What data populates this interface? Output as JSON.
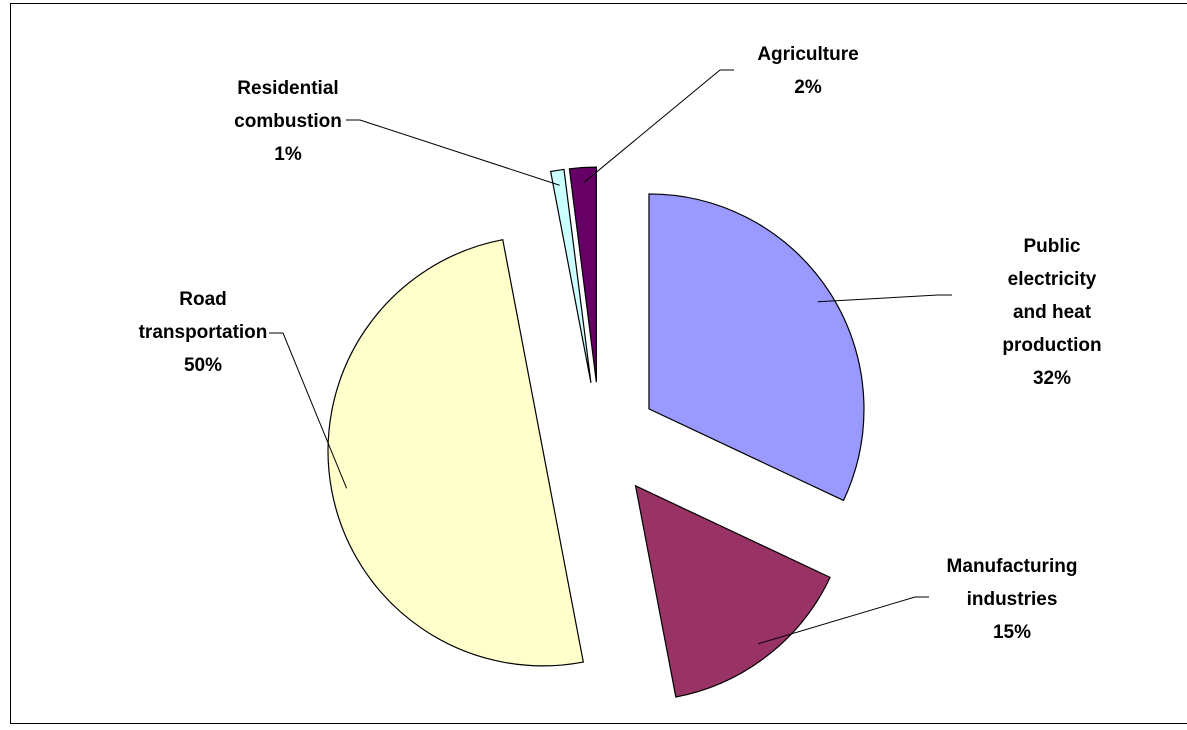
{
  "chart_data": {
    "type": "pie",
    "categories": [
      "Public electricity\nand heat\nproduction",
      "Manufacturing\nindustries",
      "Road\ntransportation",
      "Residential\ncombustion",
      "Agriculture"
    ],
    "values": [
      32,
      15,
      50,
      1,
      2
    ],
    "value_labels": [
      "32%",
      "15%",
      "50%",
      "1%",
      "2%"
    ],
    "colors": [
      "#9999ff",
      "#993366",
      "#ffffcc",
      "#ccffff",
      "#660066"
    ]
  }
}
